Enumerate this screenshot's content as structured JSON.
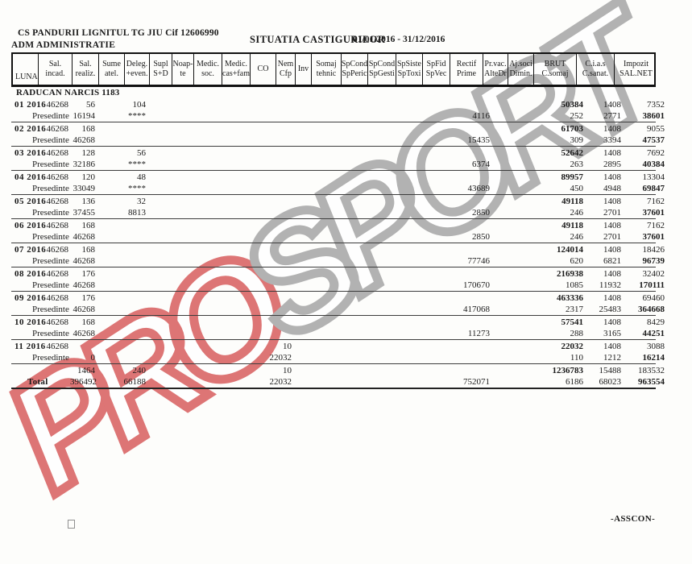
{
  "document": {
    "company": "CS PANDURII LIGNITUL TG JIU  Cif 12606990",
    "department": "ADM  ADMINISTRATIE",
    "title": "SITUATIA CASTIGURILOR",
    "period": "01/01/2016  -  31/12/2016",
    "employee": "RADUCAN NARCIS 1183",
    "footer": "-ASSCON-"
  },
  "watermark": {
    "red_text": "PRO",
    "gray_text": "SPORT",
    "red_color": "#d85e5e",
    "gray_color": "#a6a6a6"
  },
  "table": {
    "columns": [
      {
        "id": "luna",
        "label": "LUNA"
      },
      {
        "id": "sal_incad",
        "label": "Sal.\nincad."
      },
      {
        "id": "sal_realiz",
        "label": "Sal.\nrealiz."
      },
      {
        "id": "sume_atel",
        "label": "Sume\natel."
      },
      {
        "id": "deleg_even",
        "label": "Deleg.\n+even."
      },
      {
        "id": "supl_sd",
        "label": "Supl\nS+D"
      },
      {
        "id": "noapte",
        "label": "Noap-\nte"
      },
      {
        "id": "medic_soc",
        "label": "Medic.\nsoc."
      },
      {
        "id": "medic_casfam",
        "label": "Medic.\ncas+fam"
      },
      {
        "id": "co",
        "label": "CO"
      },
      {
        "id": "nem_cfp",
        "label": "Nem\nCfp"
      },
      {
        "id": "inv",
        "label": "Inv"
      },
      {
        "id": "somaj_tehnic",
        "label": "Somaj\ntehnic"
      },
      {
        "id": "spcond_spperic",
        "label": "SpCond\nSpPeric"
      },
      {
        "id": "spcond_spgesti",
        "label": "SpCond\nSpGesti"
      },
      {
        "id": "spsiste_sptoxi",
        "label": "SpSiste\nSpToxi"
      },
      {
        "id": "spfid_spvec",
        "label": "SpFid\nSpVec"
      },
      {
        "id": "rectif_prime",
        "label": "Rectif\nPrime"
      },
      {
        "id": "prvac_altedr",
        "label": "Pr.vac.\nAlteDr"
      },
      {
        "id": "ajsoci_dimin",
        "label": "Aj.soci\nDimin."
      },
      {
        "id": "brut_csomaj",
        "label": "BRUT\nC.somaj"
      },
      {
        "id": "cias_csanat",
        "label": "C.i.a.s\nC.sanat."
      },
      {
        "id": "impozit_salnet",
        "label": "Impozit\nSAL.NET"
      }
    ],
    "rows": [
      {
        "month": "01 2016",
        "func": "Presedinte",
        "incad": "46268",
        "realiz_top": "56",
        "realiz_bot": "16194",
        "deleg_top": "104",
        "deleg_bot": "****",
        "co_top": "",
        "co_bot": "",
        "rectif": "4116",
        "brut": "50384",
        "somaj": "252",
        "cias": "1408",
        "sanat": "2771",
        "impozit": "7352",
        "salnet": "38601"
      },
      {
        "month": "02 2016",
        "func": "Presedinte",
        "incad": "46268",
        "realiz_top": "168",
        "realiz_bot": "46268",
        "deleg_top": "",
        "deleg_bot": "",
        "co_top": "",
        "co_bot": "",
        "rectif": "15435",
        "brut": "61703",
        "somaj": "309",
        "cias": "1408",
        "sanat": "3394",
        "impozit": "9055",
        "salnet": "47537"
      },
      {
        "month": "03 2016",
        "func": "Presedinte",
        "incad": "46268",
        "realiz_top": "128",
        "realiz_bot": "32186",
        "deleg_top": "56",
        "deleg_bot": "****",
        "co_top": "",
        "co_bot": "",
        "rectif": "6374",
        "brut": "52642",
        "somaj": "263",
        "cias": "1408",
        "sanat": "2895",
        "impozit": "7692",
        "salnet": "40384"
      },
      {
        "month": "04 2016",
        "func": "Presedinte",
        "incad": "46268",
        "realiz_top": "120",
        "realiz_bot": "33049",
        "deleg_top": "48",
        "deleg_bot": "****",
        "co_top": "",
        "co_bot": "",
        "rectif": "43689",
        "brut": "89957",
        "somaj": "450",
        "cias": "1408",
        "sanat": "4948",
        "impozit": "13304",
        "salnet": "69847"
      },
      {
        "month": "05 2016",
        "func": "Presedinte",
        "incad": "46268",
        "realiz_top": "136",
        "realiz_bot": "37455",
        "deleg_top": "32",
        "deleg_bot": "8813",
        "co_top": "",
        "co_bot": "",
        "rectif": "2850",
        "brut": "49118",
        "somaj": "246",
        "cias": "1408",
        "sanat": "2701",
        "impozit": "7162",
        "salnet": "37601"
      },
      {
        "month": "06 2016",
        "func": "Presedinte",
        "incad": "46268",
        "realiz_top": "168",
        "realiz_bot": "46268",
        "deleg_top": "",
        "deleg_bot": "",
        "co_top": "",
        "co_bot": "",
        "rectif": "2850",
        "brut": "49118",
        "somaj": "246",
        "cias": "1408",
        "sanat": "2701",
        "impozit": "7162",
        "salnet": "37601"
      },
      {
        "month": "07 2016",
        "func": "Presedinte",
        "incad": "46268",
        "realiz_top": "168",
        "realiz_bot": "46268",
        "deleg_top": "",
        "deleg_bot": "",
        "co_top": "",
        "co_bot": "",
        "rectif": "77746",
        "brut": "124014",
        "somaj": "620",
        "cias": "1408",
        "sanat": "6821",
        "impozit": "18426",
        "salnet": "96739"
      },
      {
        "month": "08 2016",
        "func": "Presedinte",
        "incad": "46268",
        "realiz_top": "176",
        "realiz_bot": "46268",
        "deleg_top": "",
        "deleg_bot": "",
        "co_top": "",
        "co_bot": "",
        "rectif": "170670",
        "brut": "216938",
        "somaj": "1085",
        "cias": "1408",
        "sanat": "11932",
        "impozit": "32402",
        "salnet": "170111"
      },
      {
        "month": "09 2016",
        "func": "Presedinte",
        "incad": "46268",
        "realiz_top": "176",
        "realiz_bot": "46268",
        "deleg_top": "",
        "deleg_bot": "",
        "co_top": "",
        "co_bot": "",
        "rectif": "417068",
        "brut": "463336",
        "somaj": "2317",
        "cias": "1408",
        "sanat": "25483",
        "impozit": "69460",
        "salnet": "364668"
      },
      {
        "month": "10 2016",
        "func": "Presedinte",
        "incad": "46268",
        "realiz_top": "168",
        "realiz_bot": "46268",
        "deleg_top": "",
        "deleg_bot": "",
        "co_top": "",
        "co_bot": "",
        "rectif": "11273",
        "brut": "57541",
        "somaj": "288",
        "cias": "1408",
        "sanat": "3165",
        "impozit": "8429",
        "salnet": "44251"
      },
      {
        "month": "11 2016",
        "func": "Presedinte",
        "incad": "46268",
        "realiz_top": "",
        "realiz_bot": "0",
        "deleg_top": "",
        "deleg_bot": "",
        "co_top": "10",
        "co_bot": "22032",
        "rectif": "",
        "brut": "22032",
        "somaj": "110",
        "cias": "1408",
        "sanat": "1212",
        "impozit": "3088",
        "salnet": "16214"
      }
    ],
    "total": {
      "month": "",
      "func": "Total",
      "incad": "",
      "realiz_top": "1464",
      "realiz_bot": "396492",
      "deleg_top": "240",
      "deleg_bot": "66188",
      "co_top": "10",
      "co_bot": "22032",
      "rectif": "752071",
      "brut": "1236783",
      "somaj": "6186",
      "cias": "15488",
      "sanat": "68023",
      "impozit": "183532",
      "salnet": "963554"
    }
  }
}
